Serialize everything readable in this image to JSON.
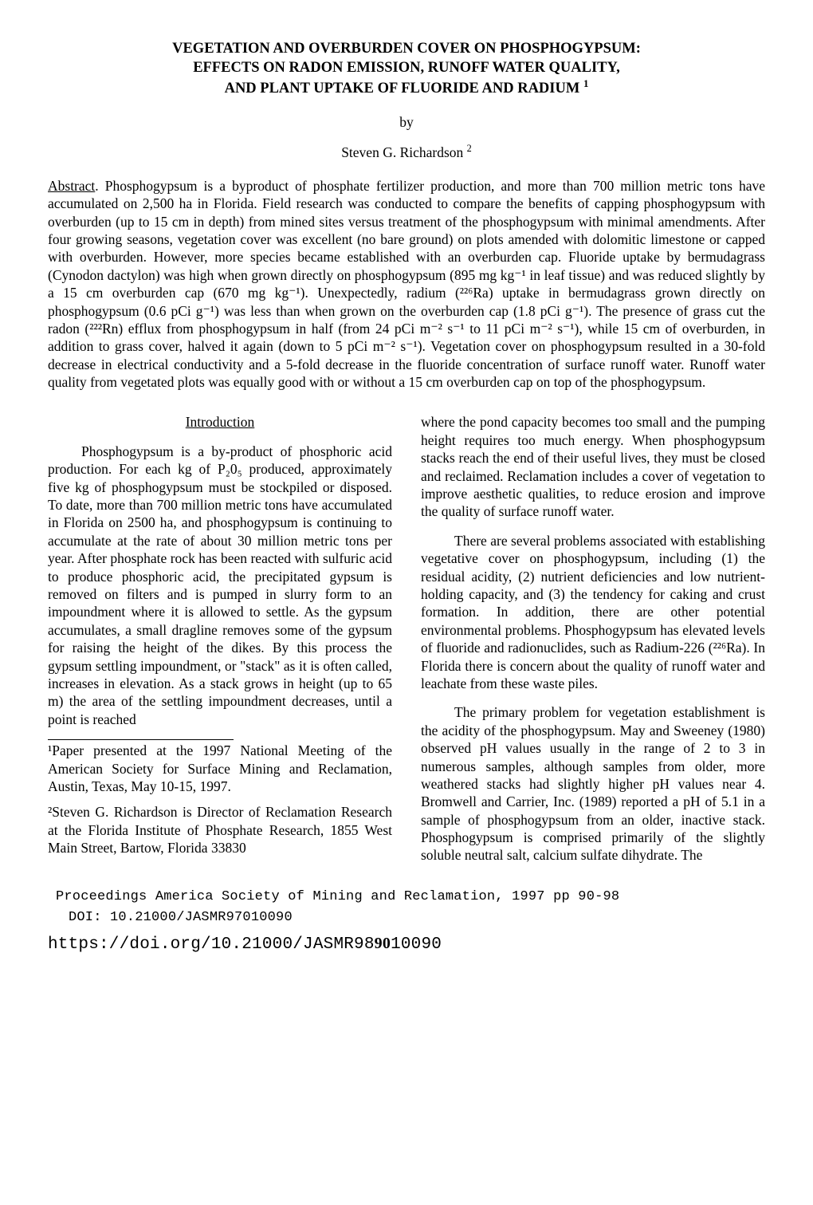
{
  "title_line1": "VEGETATION AND OVERBURDEN COVER ON PHOSPHOGYPSUM:",
  "title_line2": "EFFECTS ON RADON EMISSION, RUNOFF WATER QUALITY,",
  "title_line3": "AND PLANT UPTAKE OF FLUORIDE AND RADIUM ",
  "title_sup": "1",
  "by": "by",
  "author": "Steven G. Richardson ",
  "author_sup": "2",
  "abstract_label": "Abstract",
  "abstract_body": ". Phosphogypsum is a byproduct of phosphate fertilizer production, and more than 700 million metric tons have accumulated on 2,500 ha in Florida. Field research was conducted to compare the benefits of capping phosphogypsum with overburden (up to 15 cm in depth) from mined sites versus treatment of the phosphogypsum with minimal amendments. After four growing seasons, vegetation cover was excellent (no bare ground) on plots amended with dolomitic limestone or capped with overburden. However, more species became established with an overburden cap. Fluoride uptake by bermudagrass (Cynodon dactylon) was high when grown directly on phosphogypsum (895 mg kg⁻¹ in leaf tissue) and was reduced slightly by a 15 cm overburden cap (670 mg kg⁻¹). Unexpectedly, radium (²²⁶Ra) uptake in bermudagrass grown directly on phosphogypsum (0.6 pCi g⁻¹) was less than when grown on the overburden cap (1.8 pCi g⁻¹). The presence of grass cut the radon (²²²Rn) efflux from phosphogypsum in half (from 24 pCi m⁻² s⁻¹ to 11 pCi m⁻² s⁻¹), while 15 cm of overburden, in addition to grass cover, halved it again (down to 5 pCi m⁻² s⁻¹). Vegetation cover on phosphogypsum resulted in a 30-fold decrease in electrical conductivity and a 5-fold decrease in the fluoride concentration of surface runoff water. Runoff water quality from vegetated plots was equally good with or without a 15 cm overburden cap on top of the phosphogypsum.",
  "intro_heading": "Introduction",
  "left": {
    "p1": "Phosphogypsum is a by-product of phosphoric acid production. For each kg of P₂0₅ produced, approximately five kg of phosphogypsum must be stockpiled or disposed. To date, more than 700 million metric tons have accumulated in Florida on 2500 ha, and phosphogypsum is continuing to accumulate at the rate of about 30 million metric tons per year. After phosphate rock has been reacted with sulfuric acid to produce phosphoric acid, the precipitated gypsum is removed on filters and is pumped in slurry form to an impoundment where it is allowed to settle. As the gypsum accumulates, a small dragline removes some of the gypsum for raising the height of the dikes. By this process the gypsum settling impoundment, or \"stack\" as it is often called, increases in elevation. As a stack grows in height (up to 65 m) the area of the settling impoundment decreases, until a point is reached",
    "fn1": "¹Paper presented at the 1997 National Meeting of the American Society for Surface Mining and Reclamation, Austin, Texas, May 10-15, 1997.",
    "fn2": "²Steven G. Richardson is Director of Reclamation Research at the Florida Institute of Phosphate Research, 1855 West Main Street, Bartow, Florida 33830"
  },
  "right": {
    "p1": "where the pond capacity becomes too small and the pumping height requires too much energy. When phosphogypsum stacks reach the end of their useful lives, they must be closed and reclaimed. Reclamation includes a cover of vegetation to improve aesthetic qualities, to reduce erosion and improve the quality of surface runoff water.",
    "p2": "There are several problems associated with establishing vegetative cover on phosphogypsum, including (1) the residual acidity, (2) nutrient deficiencies and low nutrient-holding capacity, and (3) the tendency for caking and crust formation. In addition, there are other potential environmental problems. Phosphogypsum has elevated levels of fluoride and radionuclides, such as Radium-226 (²²⁶Ra). In Florida there is concern about the quality of runoff water and leachate from these waste piles.",
    "p3": "The primary problem for vegetation establishment is the acidity of the phosphogypsum. May and Sweeney (1980) observed pH values usually in the range of 2 to 3 in numerous samples, although samples from older, more weathered stacks had slightly higher pH values near 4. Bromwell and Carrier, Inc. (1989) reported a pH of 5.1 in a sample of phosphogypsum from an older, inactive stack. Phosphogypsum is comprised primarily of the slightly soluble neutral salt, calcium sulfate dihydrate. The"
  },
  "footer": {
    "proc": "Proceedings America Society of Mining and Reclamation, 1997 pp 90-98",
    "doi": "DOI: 10.21000/JASMR97010090",
    "url_pre": "https://doi.org/10.21000/JASMR98",
    "page_num_pre": "9",
    "page_num_post": "0",
    "url_post": "10090"
  }
}
